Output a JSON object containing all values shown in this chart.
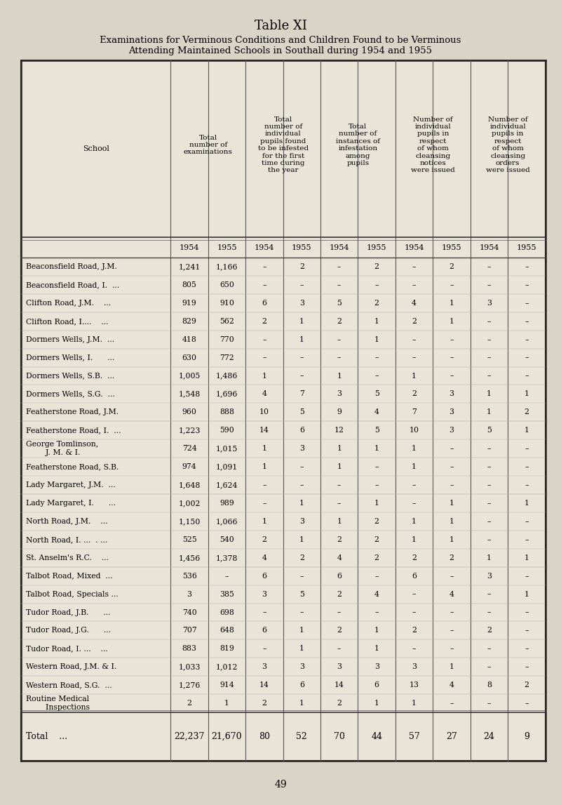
{
  "title": "Table XI",
  "subtitle_line1": "Examinations for Verminous Conditions and Children Found to be Verminous",
  "subtitle_line2": "Attending Maintained Schools in Southall during 1954 and 1955",
  "bg_color": "#d8d4c8",
  "table_bg": "#e8e4d8",
  "col_headers": [
    "School",
    "Total\nnumber of\nexaminations",
    "Total\nnumber of\nindividual\npupils found\nto be infested\nfor the first\ntime during\nthe year",
    "Total\nnumber of\ninstances of\ninfestation\namong\npupils",
    "Number of\nindividual\npupils in\nrespect\nof whom\ncleansing\nnotices\nwere issued",
    "Number of\nindividual\npupils in\nrespect\nof whom\ncleansing\norders\nwere issued"
  ],
  "year_headers": [
    "1954",
    "1955",
    "1954",
    "1955",
    "1954",
    "1955",
    "1954",
    "1955",
    "1954",
    "1955"
  ],
  "rows": [
    [
      "Beaconsfield Road, J.M.",
      "1,241",
      "1,166",
      "–",
      "2",
      "–",
      "2",
      "–",
      "2",
      "–",
      "–"
    ],
    [
      "Beaconsfield Road, I.  ...",
      "805",
      "650",
      "–",
      "–",
      "–",
      "–",
      "–",
      "–",
      "–",
      "–"
    ],
    [
      "Clifton Road, J.M.    ...",
      "919",
      "910",
      "6",
      "3",
      "5",
      "2",
      "4",
      "1",
      "3",
      "–"
    ],
    [
      "Clifton Road, I....    ...",
      "829",
      "562",
      "2",
      "1",
      "2",
      "1",
      "2",
      "1",
      "–",
      "–"
    ],
    [
      "Dormers Wells, J.M.  ...",
      "418",
      "770",
      "–",
      "1",
      "–",
      "1",
      "–",
      "–",
      "–",
      "–"
    ],
    [
      "Dormers Wells, I.      ...",
      "630",
      "772",
      "–",
      "–",
      "–",
      "–",
      "–",
      "–",
      "–",
      "–"
    ],
    [
      "Dormers Wells, S.B.  ...",
      "1,005",
      "1,486",
      "1",
      "–",
      "1",
      "–",
      "1",
      "–",
      "–",
      "–"
    ],
    [
      "Dormers Wells, S.G.  ...",
      "1,548",
      "1,696",
      "4",
      "7",
      "3",
      "5",
      "2",
      "3",
      "1",
      "1"
    ],
    [
      "Featherstone Road, J.M.",
      "960",
      "888",
      "10",
      "5",
      "9",
      "4",
      "7",
      "3",
      "1",
      "2"
    ],
    [
      "Featherstone Road, I.  ...",
      "1,223",
      "590",
      "14",
      "6",
      "12",
      "5",
      "10",
      "3",
      "5",
      "1"
    ],
    [
      "George Tomlinson,\n        J. M. & I.",
      "724",
      "1,015",
      "1",
      "3",
      "1",
      "1",
      "1",
      "–",
      "–",
      "–"
    ],
    [
      "Featherstone Road, S.B.",
      "974",
      "1,091",
      "1",
      "–",
      "1",
      "–",
      "1",
      "–",
      "–",
      "–"
    ],
    [
      "Lady Margaret, J.M.  ...",
      "1,648",
      "1,624",
      "–",
      "–",
      "–",
      "–",
      "–",
      "–",
      "–",
      "–"
    ],
    [
      "Lady Margaret, I.      ...",
      "1,002",
      "989",
      "–",
      "1",
      "–",
      "1",
      "–",
      "1",
      "–",
      "1"
    ],
    [
      "North Road, J.M.    ...",
      "1,150",
      "1,066",
      "1",
      "3",
      "1",
      "2",
      "1",
      "1",
      "–",
      "–"
    ],
    [
      "North Road, I. ...  . ...",
      "525",
      "540",
      "2",
      "1",
      "2",
      "2",
      "1",
      "1",
      "–",
      "–"
    ],
    [
      "St. Anselm's R.C.    ...",
      "1,456",
      "1,378",
      "4",
      "2",
      "4",
      "2",
      "2",
      "2",
      "1",
      "1"
    ],
    [
      "Talbot Road, Mixed  ...",
      "536",
      "–",
      "6",
      "–",
      "6",
      "–",
      "6",
      "–",
      "3",
      "–"
    ],
    [
      "Talbot Road, Specials ...",
      "3",
      "385",
      "3",
      "5",
      "2",
      "4",
      "–",
      "4",
      "–",
      "1"
    ],
    [
      "Tudor Road, J.B.      ...",
      "740",
      "698",
      "–",
      "–",
      "–",
      "–",
      "–",
      "–",
      "–",
      "–"
    ],
    [
      "Tudor Road, J.G.      ...",
      "707",
      "648",
      "6",
      "1",
      "2",
      "1",
      "2",
      "–",
      "2",
      "–"
    ],
    [
      "Tudor Road, I. ...    ...",
      "883",
      "819",
      "–",
      "1",
      "–",
      "1",
      "–",
      "–",
      "–",
      "–"
    ],
    [
      "Western Road, J.M. & I.",
      "1,033",
      "1,012",
      "3",
      "3",
      "3",
      "3",
      "3",
      "1",
      "–",
      "–"
    ],
    [
      "Western Road, S.G.  ...",
      "1,276",
      "914",
      "14",
      "6",
      "14",
      "6",
      "13",
      "4",
      "8",
      "2"
    ],
    [
      "Routine Medical\n        Inspections",
      "2",
      "1",
      "2",
      "1",
      "2",
      "1",
      "1",
      "–",
      "–",
      "–"
    ]
  ],
  "total_row": [
    "Total    ...",
    "22,237",
    "21,670",
    "80",
    "52",
    "70",
    "44",
    "57",
    "27",
    "24",
    "9"
  ],
  "page_number": "49"
}
